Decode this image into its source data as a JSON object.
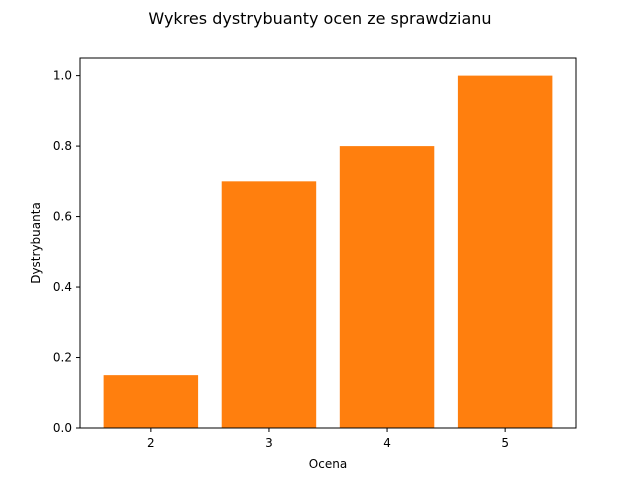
{
  "chart_data": {
    "type": "bar",
    "title": "Wykres dystrybuanty ocen ze sprawdzianu",
    "xlabel": "Ocena",
    "ylabel": "Dystrybuanta",
    "categories": [
      "2",
      "3",
      "4",
      "5"
    ],
    "values": [
      0.15,
      0.7,
      0.8,
      1.0
    ],
    "ylim": [
      0,
      1.05
    ],
    "yticks": [
      "0.0",
      "0.2",
      "0.4",
      "0.6",
      "0.8",
      "1.0"
    ],
    "grid": false,
    "legend": "none",
    "bar_color": "#ff7f0e"
  }
}
